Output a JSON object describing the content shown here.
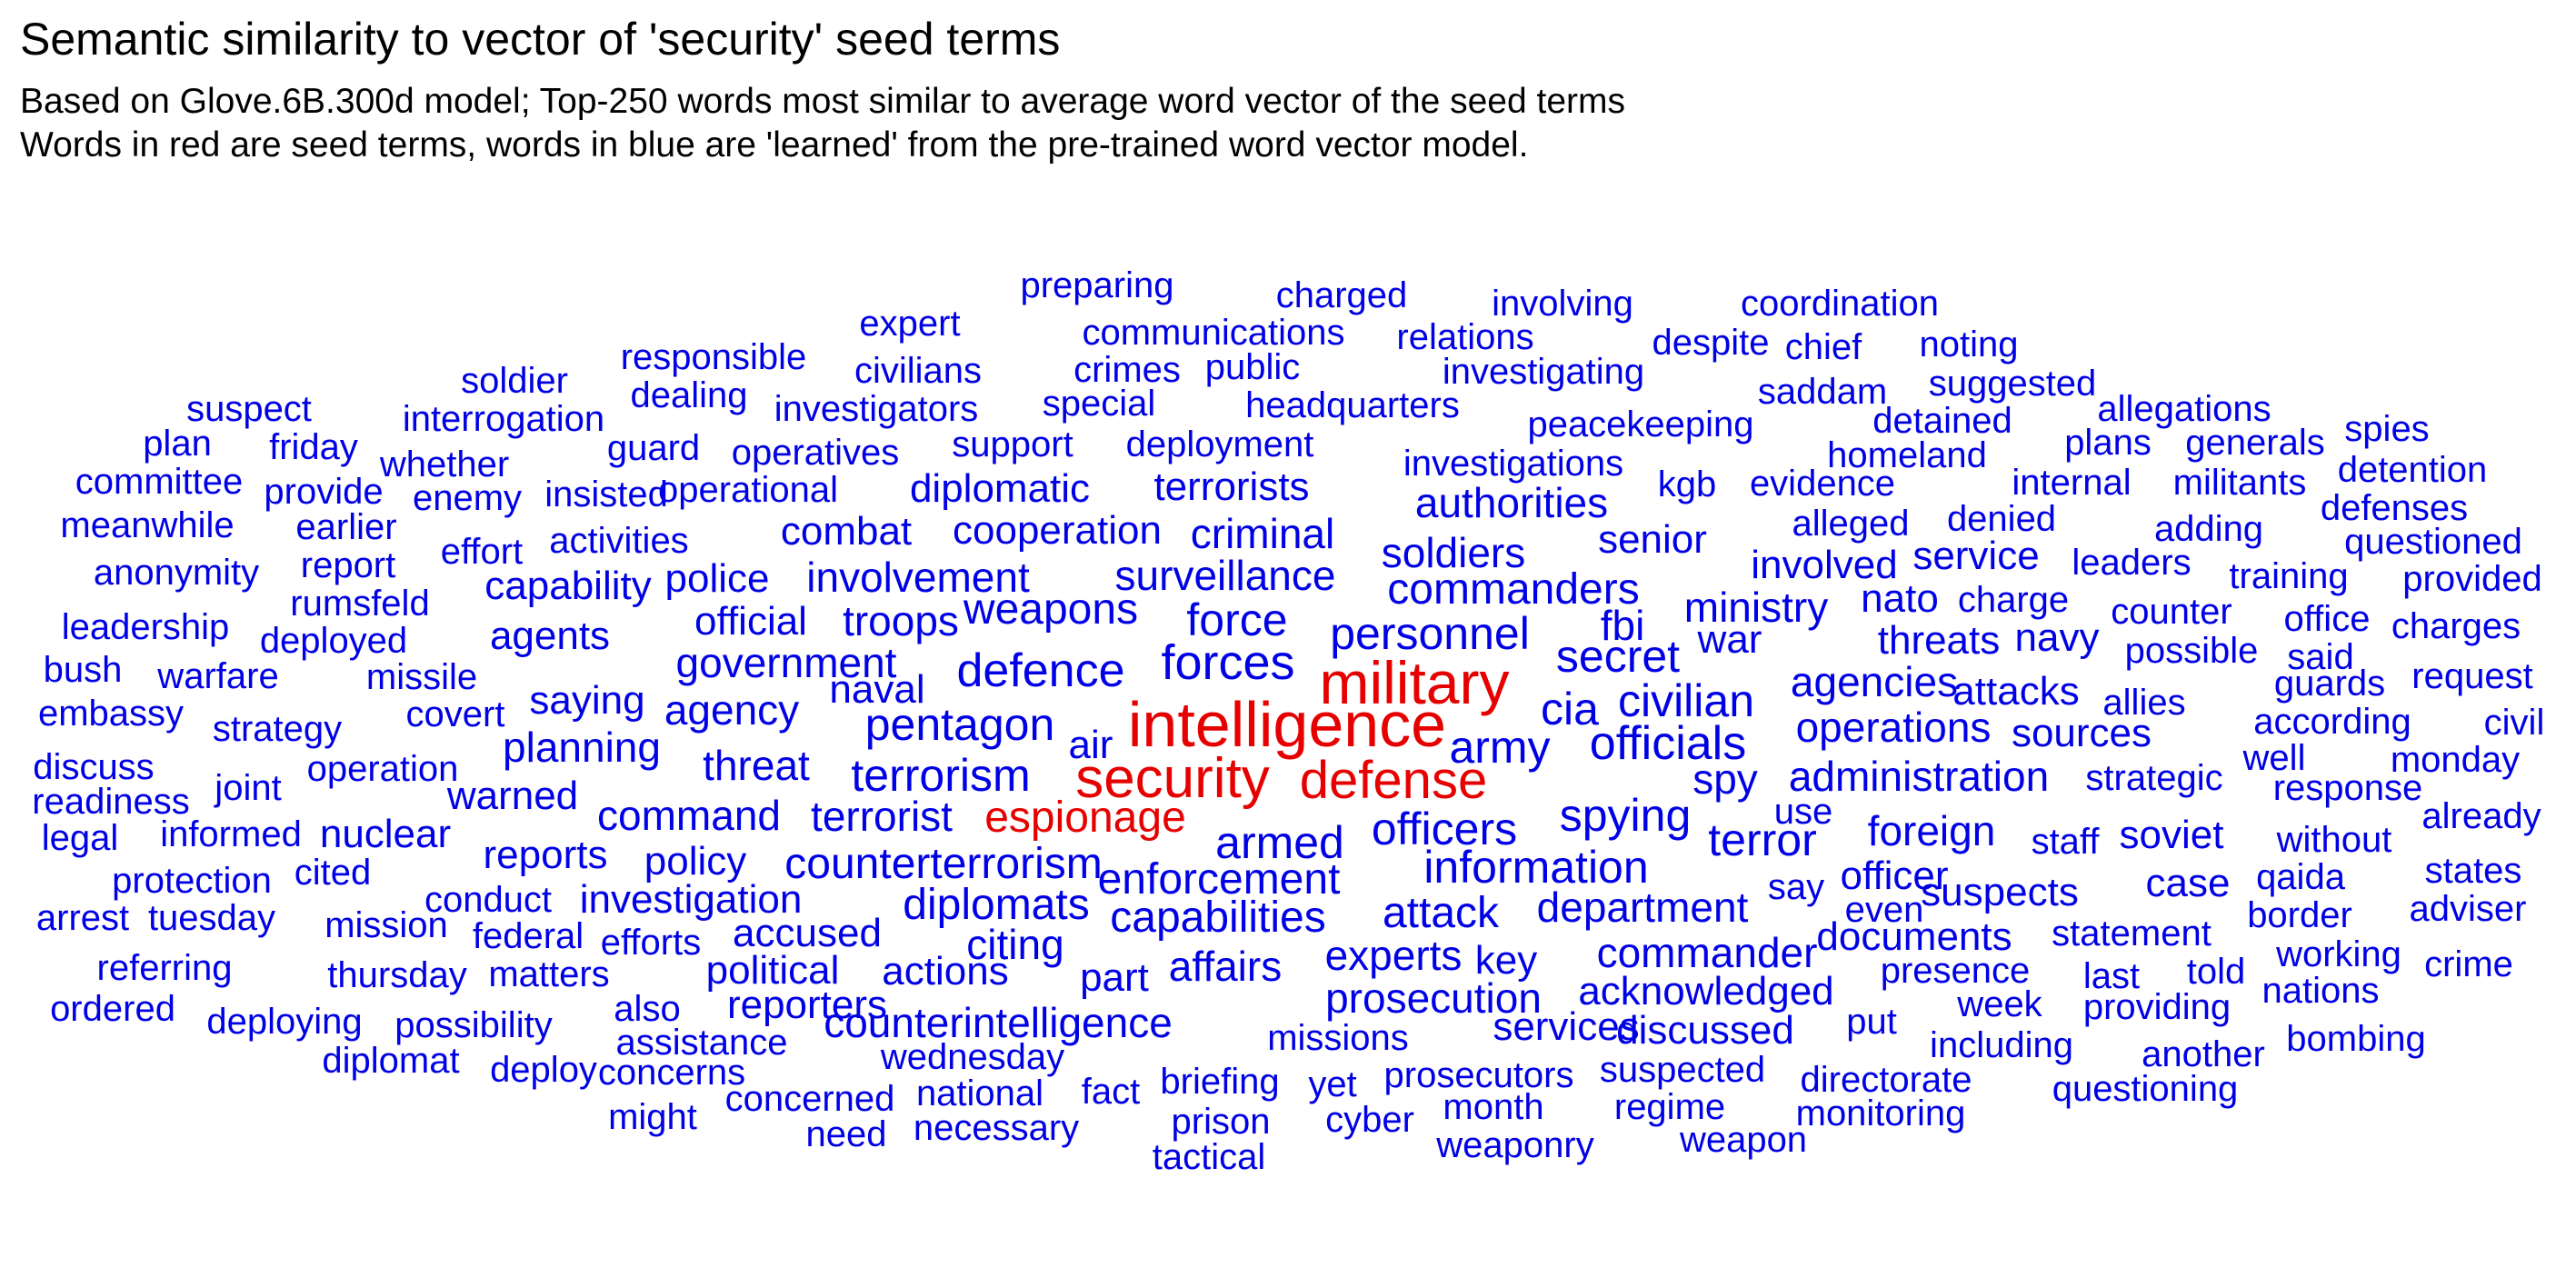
{
  "chart_data": {
    "type": "wordcloud",
    "title": "Semantic similarity to vector of 'security' seed terms",
    "subtitle": [
      "Based on Glove.6B.300d model; Top-250 words most similar to average word vector of the seed terms",
      "Words in red are seed terms, words in blue are 'learned' from the pre-trained word vector model."
    ],
    "colors": {
      "seed": "#e60000",
      "learned": "#0000e6"
    },
    "seed_terms": [
      "intelligence",
      "military",
      "security",
      "defense",
      "espionage"
    ],
    "words": [
      "preparing",
      "charged",
      "involving",
      "coordination",
      "expert",
      "communications",
      "relations",
      "despite",
      "chief",
      "noting",
      "soldier",
      "responsible",
      "civilians",
      "crimes",
      "public",
      "investigating",
      "dealing",
      "saddam",
      "suggested",
      "suspect",
      "investigators",
      "special",
      "headquarters",
      "peacekeeping",
      "detained",
      "allegations",
      "interrogation",
      "spies",
      "plan",
      "friday",
      "guard",
      "support",
      "deployment",
      "homeland",
      "plans",
      "generals",
      "whether",
      "operatives",
      "investigations",
      "detention",
      "committee",
      "provide",
      "enemy",
      "insisted",
      "operational",
      "diplomatic",
      "terrorists",
      "kgb",
      "evidence",
      "internal",
      "militants",
      "authorities",
      "defenses",
      "meanwhile",
      "earlier",
      "combat",
      "cooperation",
      "alleged",
      "denied",
      "adding",
      "effort",
      "activities",
      "criminal",
      "soldiers",
      "senior",
      "questioned",
      "anonymity",
      "report",
      "involvement",
      "surveillance",
      "involved",
      "service",
      "leaders",
      "training",
      "provided",
      "capability",
      "police",
      "commanders",
      "nato",
      "charge",
      "rumsfeld",
      "ministry",
      "counter",
      "office",
      "leadership",
      "deployed",
      "agents",
      "official",
      "troops",
      "weapons",
      "force",
      "personnel",
      "fbi",
      "threats",
      "navy",
      "possible",
      "charges",
      "war",
      "said",
      "bush",
      "warfare",
      "missile",
      "government",
      "defence",
      "forces",
      "secret",
      "agencies",
      "guards",
      "request",
      "naval",
      "attacks",
      "allies",
      "embassy",
      "covert",
      "saying",
      "agency",
      "cia",
      "civilian",
      "strategy",
      "pentagon",
      "air",
      "operations",
      "according",
      "civil",
      "army",
      "officials",
      "sources",
      "discuss",
      "planning",
      "terrorism",
      "spy",
      "administration",
      "strategic",
      "well",
      "monday",
      "operation",
      "threat",
      "joint",
      "readiness",
      "warned",
      "response",
      "command",
      "terrorist",
      "use",
      "already",
      "legal",
      "informed",
      "nuclear",
      "armed",
      "officers",
      "spying",
      "foreign",
      "staff",
      "soviet",
      "without",
      "reports",
      "terror",
      "policy",
      "counterterrorism",
      "enforcement",
      "information",
      "protection",
      "cited",
      "officer",
      "qaida",
      "states",
      "conduct",
      "investigation",
      "say",
      "case",
      "arrest",
      "tuesday",
      "diplomats",
      "capabilities",
      "attack",
      "department",
      "suspects",
      "even",
      "border",
      "adviser",
      "mission",
      "federal",
      "accused",
      "efforts",
      "citing",
      "documents",
      "statement",
      "working",
      "referring",
      "thursday",
      "matters",
      "political",
      "actions",
      "part",
      "affairs",
      "experts",
      "key",
      "commander",
      "crime",
      "presence",
      "last",
      "told",
      "nations",
      "ordered",
      "deploying",
      "also",
      "reporters",
      "prosecution",
      "acknowledged",
      "possibility",
      "counterintelligence",
      "week",
      "providing",
      "services",
      "discussed",
      "put",
      "bombing",
      "missions",
      "assistance",
      "including",
      "another",
      "diplomat",
      "deploy",
      "concerns",
      "wednesday",
      "prosecutors",
      "suspected",
      "directorate",
      "questioning",
      "concerned",
      "national",
      "fact",
      "briefing",
      "yet",
      "month",
      "regime",
      "might",
      "prison",
      "cyber",
      "monitoring",
      "need",
      "necessary",
      "weaponry",
      "weapon",
      "tactical"
    ]
  }
}
